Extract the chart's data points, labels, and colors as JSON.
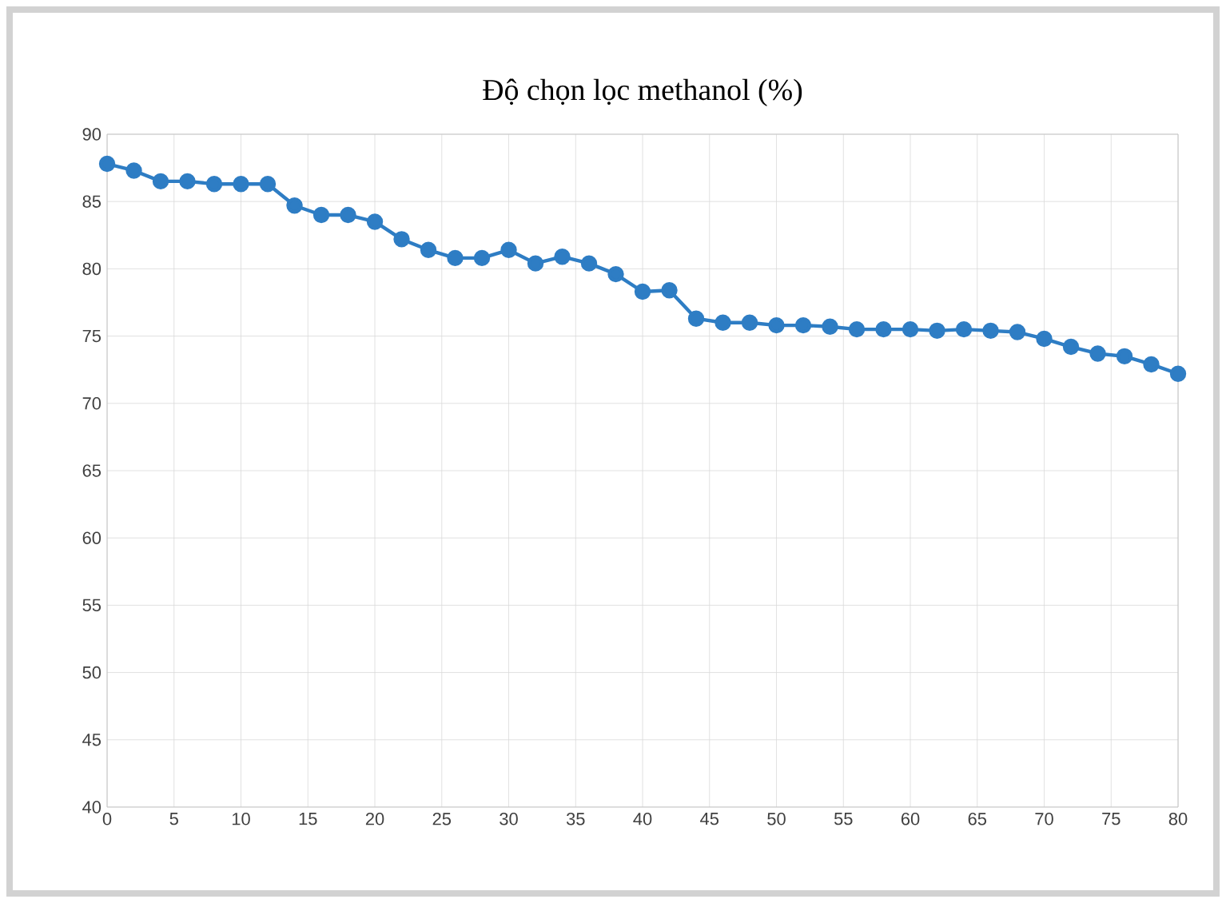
{
  "chart_data": {
    "type": "line",
    "title": "Độ chọn lọc methanol (%)",
    "x": [
      0,
      2,
      4,
      6,
      8,
      10,
      12,
      14,
      16,
      18,
      20,
      22,
      24,
      26,
      28,
      30,
      32,
      34,
      36,
      38,
      40,
      42,
      44,
      46,
      48,
      50,
      52,
      54,
      56,
      58,
      60,
      62,
      64,
      66,
      68,
      70,
      72,
      74,
      76,
      78,
      80
    ],
    "series": [
      {
        "color": "#2e7dc4",
        "values": [
          87.8,
          87.3,
          86.5,
          86.5,
          86.3,
          86.3,
          86.3,
          84.7,
          84.0,
          84.0,
          83.5,
          82.2,
          81.4,
          80.8,
          80.8,
          81.4,
          80.4,
          80.9,
          80.4,
          79.6,
          78.3,
          78.4,
          76.3,
          76.0,
          76.0,
          75.8,
          75.8,
          75.7,
          75.5,
          75.5,
          75.5,
          75.4,
          75.5,
          75.4,
          75.3,
          74.8,
          74.2,
          73.7,
          73.5,
          72.9,
          72.2
        ]
      }
    ],
    "xlim": [
      0,
      80
    ],
    "xticks": [
      0,
      5,
      10,
      15,
      20,
      25,
      30,
      35,
      40,
      45,
      50,
      55,
      60,
      65,
      70,
      75,
      80
    ],
    "ylim": [
      40,
      90
    ],
    "yticks": [
      40,
      45,
      50,
      55,
      60,
      65,
      70,
      75,
      80,
      85,
      90
    ],
    "grid": true,
    "marker": "circle"
  }
}
